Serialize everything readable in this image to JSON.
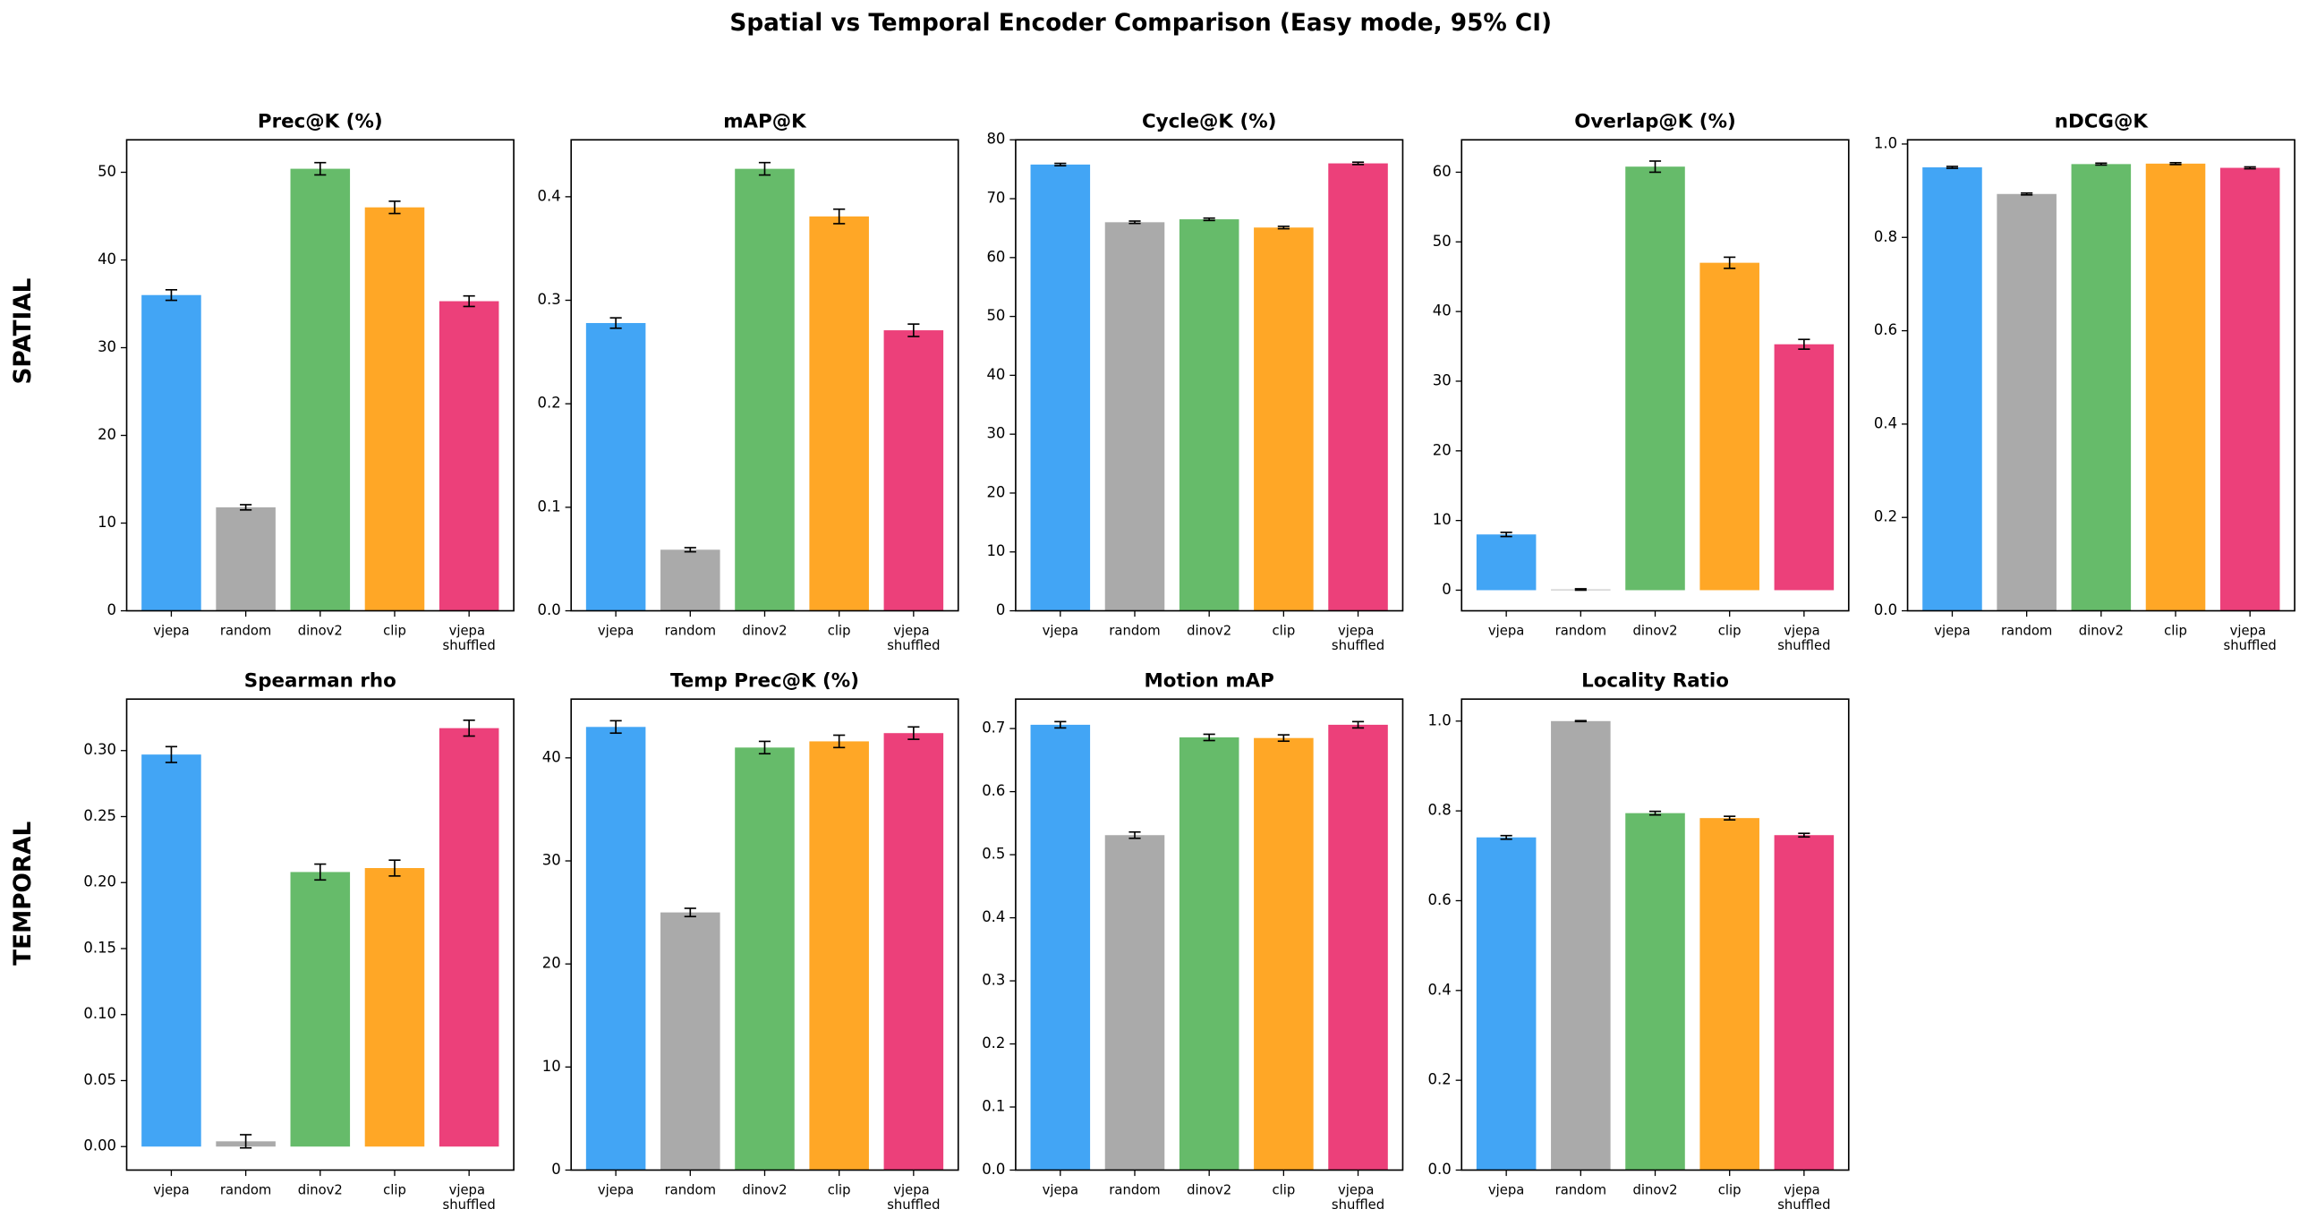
{
  "title": "Spatial vs Temporal Encoder Comparison (Easy mode, 95% CI)",
  "row_labels": [
    {
      "text": "SPATIAL",
      "color": "#2e7d32"
    },
    {
      "text": "TEMPORAL",
      "color": "#c62828"
    }
  ],
  "chart_data": [
    {
      "type": "bar",
      "title": "Prec@K (%)",
      "title_color": "#2e7d32",
      "categories": [
        "vjepa",
        "random",
        "dinov2",
        "clip",
        "vjepa shuffled"
      ],
      "colors": [
        "#42a5f5",
        "#aaaaaa",
        "#66bb6a",
        "#ffa726",
        "#ec407a"
      ],
      "values": [
        36.0,
        11.8,
        50.4,
        46.0,
        35.3
      ],
      "errors": [
        0.6,
        0.3,
        0.7,
        0.7,
        0.6
      ],
      "ylim": [
        0,
        53.7
      ],
      "yticks": [
        0,
        10,
        20,
        30,
        40,
        50
      ]
    },
    {
      "type": "bar",
      "title": "mAP@K",
      "title_color": "#2e7d32",
      "categories": [
        "vjepa",
        "random",
        "dinov2",
        "clip",
        "vjepa shuffled"
      ],
      "colors": [
        "#42a5f5",
        "#aaaaaa",
        "#66bb6a",
        "#ffa726",
        "#ec407a"
      ],
      "values": [
        0.278,
        0.059,
        0.427,
        0.381,
        0.271
      ],
      "errors": [
        0.005,
        0.002,
        0.006,
        0.007,
        0.006
      ],
      "ylim": [
        0,
        0.455
      ],
      "yticks": [
        {
          "value": 0,
          "label": "0.0"
        },
        0.1,
        0.2,
        0.3,
        0.4
      ]
    },
    {
      "type": "bar",
      "title": "Cycle@K (%)",
      "title_color": "#2e7d32",
      "categories": [
        "vjepa",
        "random",
        "dinov2",
        "clip",
        "vjepa shuffled"
      ],
      "colors": [
        "#42a5f5",
        "#aaaaaa",
        "#66bb6a",
        "#ffa726",
        "#ec407a"
      ],
      "values": [
        75.8,
        66.0,
        66.5,
        65.1,
        76.0
      ],
      "errors": [
        0.2,
        0.2,
        0.2,
        0.2,
        0.2
      ],
      "ylim": [
        0,
        80
      ],
      "yticks": [
        0,
        10,
        20,
        30,
        40,
        50,
        60,
        70,
        80
      ]
    },
    {
      "type": "bar",
      "title": "Overlap@K (%)",
      "title_color": "#2e7d32",
      "categories": [
        "vjepa",
        "random",
        "dinov2",
        "clip",
        "vjepa shuffled"
      ],
      "colors": [
        "#42a5f5",
        "#aaaaaa",
        "#66bb6a",
        "#ffa726",
        "#ec407a"
      ],
      "values": [
        8.0,
        0.1,
        60.8,
        47.0,
        35.3
      ],
      "errors": [
        0.3,
        0.1,
        0.8,
        0.8,
        0.7
      ],
      "ylim": [
        -2.96,
        64.65
      ],
      "yticks": [
        0,
        10,
        20,
        30,
        40,
        50,
        60
      ]
    },
    {
      "type": "bar",
      "title": "nDCG@K",
      "title_color": "#2e7d32",
      "categories": [
        "vjepa",
        "random",
        "dinov2",
        "clip",
        "vjepa shuffled"
      ],
      "colors": [
        "#42a5f5",
        "#aaaaaa",
        "#66bb6a",
        "#ffa726",
        "#ec407a"
      ],
      "values": [
        0.95,
        0.893,
        0.957,
        0.958,
        0.949
      ],
      "errors": [
        0.002,
        0.002,
        0.002,
        0.002,
        0.002
      ],
      "ylim": [
        0,
        1.009
      ],
      "yticks": [
        {
          "value": 0,
          "label": "0.0"
        },
        0.2,
        0.4,
        0.6,
        0.8,
        {
          "value": 1,
          "label": "1.0"
        }
      ]
    },
    {
      "type": "bar",
      "title": "Spearman rho",
      "title_color": "#c62828",
      "categories": [
        "vjepa",
        "random",
        "dinov2",
        "clip",
        "vjepa shuffled"
      ],
      "colors": [
        "#42a5f5",
        "#aaaaaa",
        "#66bb6a",
        "#ffa726",
        "#ec407a"
      ],
      "values": [
        0.297,
        0.004,
        0.208,
        0.211,
        0.317
      ],
      "errors": [
        0.006,
        0.005,
        0.006,
        0.006,
        0.006
      ],
      "ylim": [
        -0.0178,
        0.339
      ],
      "yticks": [
        {
          "value": 0,
          "label": "0.00"
        },
        {
          "value": 0.05,
          "label": "0.05"
        },
        {
          "value": 0.1,
          "label": "0.10"
        },
        {
          "value": 0.15,
          "label": "0.15"
        },
        {
          "value": 0.2,
          "label": "0.20"
        },
        {
          "value": 0.25,
          "label": "0.25"
        },
        {
          "value": 0.3,
          "label": "0.30"
        }
      ]
    },
    {
      "type": "bar",
      "title": "Temp Prec@K (%)",
      "title_color": "#c62828",
      "categories": [
        "vjepa",
        "random",
        "dinov2",
        "clip",
        "vjepa shuffled"
      ],
      "colors": [
        "#42a5f5",
        "#aaaaaa",
        "#66bb6a",
        "#ffa726",
        "#ec407a"
      ],
      "values": [
        43.0,
        25.0,
        41.0,
        41.6,
        42.4
      ],
      "errors": [
        0.6,
        0.4,
        0.6,
        0.6,
        0.6
      ],
      "ylim": [
        0,
        45.7
      ],
      "yticks": [
        0,
        10,
        20,
        30,
        40
      ]
    },
    {
      "type": "bar",
      "title": "Motion mAP",
      "title_color": "#c62828",
      "categories": [
        "vjepa",
        "random",
        "dinov2",
        "clip",
        "vjepa shuffled"
      ],
      "colors": [
        "#42a5f5",
        "#aaaaaa",
        "#66bb6a",
        "#ffa726",
        "#ec407a"
      ],
      "values": [
        0.706,
        0.531,
        0.686,
        0.685,
        0.706
      ],
      "errors": [
        0.005,
        0.005,
        0.005,
        0.005,
        0.005
      ],
      "ylim": [
        0,
        0.7467
      ],
      "yticks": [
        {
          "value": 0,
          "label": "0.0"
        },
        0.1,
        0.2,
        0.3,
        0.4,
        0.5,
        0.6,
        0.7
      ]
    },
    {
      "type": "bar",
      "title": "Locality Ratio",
      "title_color": "#c62828",
      "categories": [
        "vjepa",
        "random",
        "dinov2",
        "clip",
        "vjepa shuffled"
      ],
      "colors": [
        "#42a5f5",
        "#aaaaaa",
        "#66bb6a",
        "#ffa726",
        "#ec407a"
      ],
      "values": [
        0.741,
        1.0,
        0.795,
        0.784,
        0.746
      ],
      "errors": [
        0.004,
        0.001,
        0.004,
        0.004,
        0.004
      ],
      "ylim": [
        0,
        1.049
      ],
      "yticks": [
        {
          "value": 0,
          "label": "0.0"
        },
        0.2,
        0.4,
        0.6,
        0.8,
        {
          "value": 1,
          "label": "1.0"
        }
      ]
    }
  ]
}
